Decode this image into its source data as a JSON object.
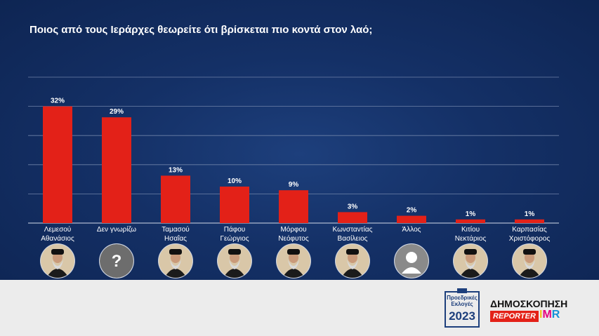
{
  "title": "Ποιος από τους Ιεράρχες θεωρείτε ότι βρίσκεται πιο κοντά στον λαό;",
  "chart_data": {
    "type": "bar",
    "title": "Ποιος από τους Ιεράρχες θεωρείτε ότι βρίσκεται πιο κοντά στον λαό;",
    "categories": [
      [
        "Λεμεσού",
        "Αθανάσιος"
      ],
      [
        "Δεν γνωρίζω"
      ],
      [
        "Ταμασού",
        "Ησαΐας"
      ],
      [
        "Πάφου",
        "Γεώργιος"
      ],
      [
        "Μόρφου",
        "Νεόφυτος"
      ],
      [
        "Κωνσταντίας",
        "Βασίλειος"
      ],
      [
        "Άλλος"
      ],
      [
        "Κιτίου",
        "Νεκτάριος"
      ],
      [
        "Καρπασίας",
        "Χριστόφορος"
      ]
    ],
    "values": [
      32,
      29,
      13,
      10,
      9,
      3,
      2,
      1,
      1
    ],
    "value_labels": [
      "32%",
      "29%",
      "13%",
      "10%",
      "9%",
      "3%",
      "2%",
      "1%",
      "1%"
    ],
    "ylim": [
      0,
      40
    ],
    "grid": true,
    "bar_color": "#e32118"
  },
  "avatars": [
    "photo-icon",
    "question-mark-icon",
    "photo-icon",
    "photo-icon",
    "photo-icon",
    "photo-icon",
    "person-silhouette-icon",
    "photo-icon",
    "photo-icon"
  ],
  "footer": {
    "logo_line1": "Προεδρικές",
    "logo_line2": "Εκλογές",
    "logo_year": "2023",
    "brand_title": "ΔΗΜΟΣΚΟΠΗΣΗ",
    "reporter": "REPORTER",
    "imr_i": "I",
    "imr_m": "M",
    "imr_r": "R"
  },
  "colors": {
    "background": "#143066",
    "bar": "#e32118",
    "text": "#ffffff",
    "footer": "#ececec"
  }
}
